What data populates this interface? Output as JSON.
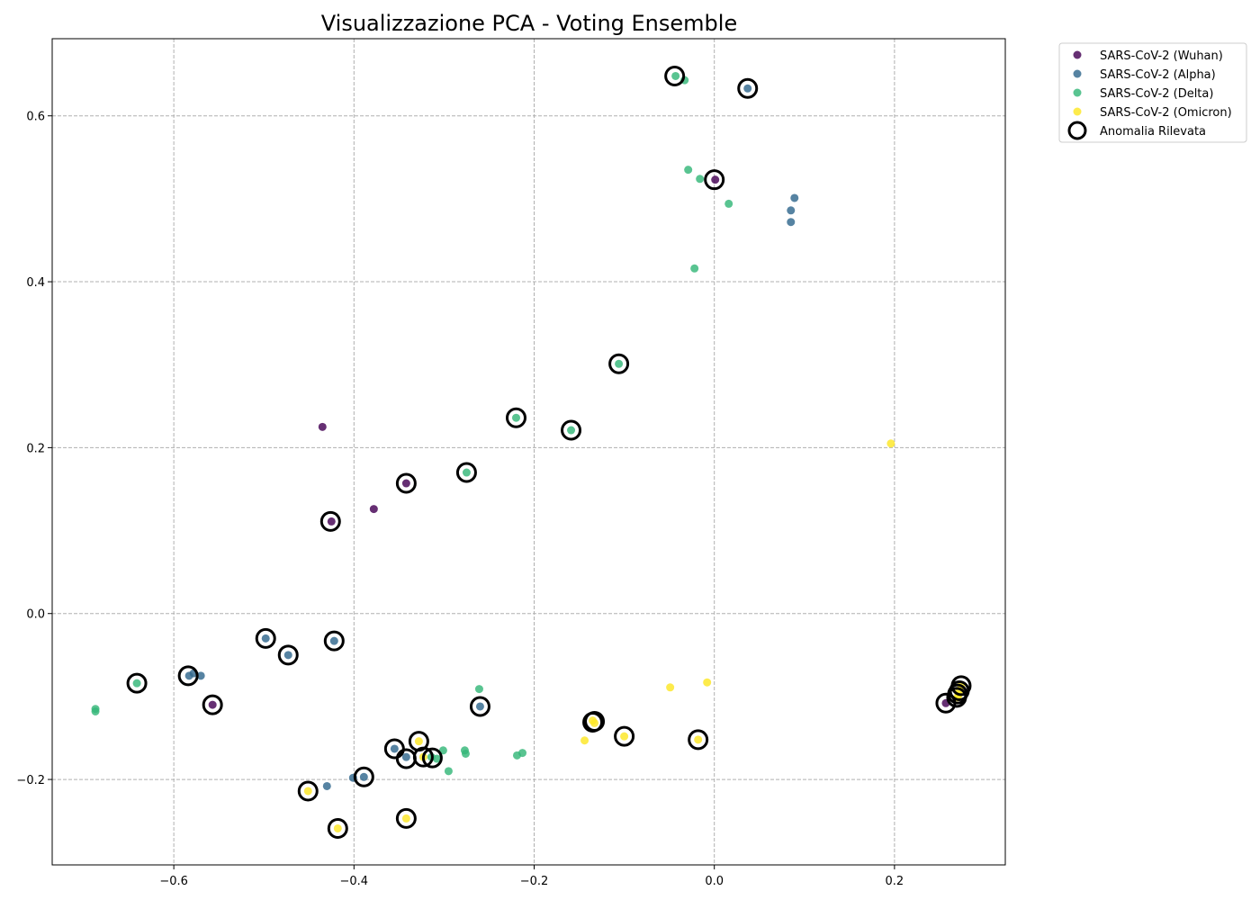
{
  "chart_data": {
    "type": "scatter",
    "title": "Visualizzazione PCA - Voting Ensemble",
    "xlabel": "",
    "ylabel": "",
    "xlim": [
      -0.735,
      0.323
    ],
    "ylim": [
      -0.303,
      0.693
    ],
    "xticks": [
      -0.6,
      -0.4,
      -0.2,
      0.0,
      0.2
    ],
    "xtick_labels": [
      "−0.6",
      "−0.4",
      "−0.2",
      "0.0",
      "0.2"
    ],
    "yticks": [
      -0.2,
      0.0,
      0.2,
      0.4,
      0.6
    ],
    "ytick_labels": [
      "−0.2",
      "0.0",
      "0.2",
      "0.4",
      "0.6"
    ],
    "grid": true,
    "legend_position": "outside-top-right",
    "series": [
      {
        "name": "SARS-CoV-2 (Wuhan)",
        "color": "#440154",
        "points": [
          [
            0.001,
            0.523
          ],
          [
            -0.435,
            0.225
          ],
          [
            -0.378,
            0.126
          ],
          [
            -0.342,
            0.157
          ],
          [
            -0.425,
            0.111
          ],
          [
            -0.557,
            -0.11
          ],
          [
            0.257,
            -0.108
          ]
        ]
      },
      {
        "name": "SARS-CoV-2 (Alpha)",
        "color": "#31688e",
        "points": [
          [
            0.037,
            0.633
          ],
          [
            0.089,
            0.501
          ],
          [
            0.085,
            0.486
          ],
          [
            0.085,
            0.472
          ],
          [
            -0.498,
            -0.03
          ],
          [
            -0.473,
            -0.05
          ],
          [
            -0.422,
            -0.033
          ],
          [
            -0.583,
            -0.075
          ],
          [
            -0.578,
            -0.072
          ],
          [
            -0.57,
            -0.075
          ],
          [
            -0.26,
            -0.112
          ],
          [
            -0.355,
            -0.163
          ],
          [
            -0.342,
            -0.173
          ],
          [
            -0.401,
            -0.198
          ],
          [
            -0.389,
            -0.197
          ],
          [
            -0.43,
            -0.208
          ]
        ]
      },
      {
        "name": "SARS-CoV-2 (Delta)",
        "color": "#35b779",
        "points": [
          [
            -0.043,
            0.648
          ],
          [
            -0.033,
            0.643
          ],
          [
            -0.029,
            0.535
          ],
          [
            -0.016,
            0.524
          ],
          [
            0.016,
            0.494
          ],
          [
            -0.022,
            0.416
          ],
          [
            -0.106,
            0.301
          ],
          [
            -0.22,
            0.236
          ],
          [
            -0.159,
            0.221
          ],
          [
            -0.275,
            0.17
          ],
          [
            -0.641,
            -0.084
          ],
          [
            -0.687,
            -0.115
          ],
          [
            -0.687,
            -0.118
          ],
          [
            -0.261,
            -0.091
          ],
          [
            -0.314,
            -0.173
          ],
          [
            -0.301,
            -0.165
          ],
          [
            -0.277,
            -0.165
          ],
          [
            -0.276,
            -0.169
          ],
          [
            -0.295,
            -0.19
          ],
          [
            -0.219,
            -0.171
          ],
          [
            -0.213,
            -0.168
          ],
          [
            -0.308,
            -0.175
          ]
        ]
      },
      {
        "name": "SARS-CoV-2 (Omicron)",
        "color": "#fde725",
        "points": [
          [
            0.196,
            0.205
          ],
          [
            -0.049,
            -0.089
          ],
          [
            -0.008,
            -0.083
          ],
          [
            -0.135,
            -0.129
          ],
          [
            -0.133,
            -0.132
          ],
          [
            -0.144,
            -0.153
          ],
          [
            -0.1,
            -0.148
          ],
          [
            -0.018,
            -0.152
          ],
          [
            -0.328,
            -0.154
          ],
          [
            -0.323,
            -0.173
          ],
          [
            -0.451,
            -0.214
          ],
          [
            -0.418,
            -0.259
          ],
          [
            -0.342,
            -0.247
          ],
          [
            0.274,
            -0.087
          ],
          [
            0.272,
            -0.093
          ],
          [
            0.271,
            -0.098
          ],
          [
            0.27,
            -0.101
          ]
        ]
      }
    ],
    "anomalies": {
      "name": "Anomalia Rilevata",
      "points": [
        [
          -0.044,
          0.648
        ],
        [
          0.037,
          0.633
        ],
        [
          0.0,
          0.523
        ],
        [
          -0.106,
          0.301
        ],
        [
          -0.22,
          0.236
        ],
        [
          -0.159,
          0.221
        ],
        [
          -0.275,
          0.17
        ],
        [
          -0.342,
          0.157
        ],
        [
          -0.426,
          0.111
        ],
        [
          -0.498,
          -0.03
        ],
        [
          -0.473,
          -0.05
        ],
        [
          -0.422,
          -0.033
        ],
        [
          -0.641,
          -0.084
        ],
        [
          -0.584,
          -0.075
        ],
        [
          -0.557,
          -0.11
        ],
        [
          -0.26,
          -0.112
        ],
        [
          -0.135,
          -0.131
        ],
        [
          -0.133,
          -0.13
        ],
        [
          -0.1,
          -0.148
        ],
        [
          -0.018,
          -0.152
        ],
        [
          -0.355,
          -0.163
        ],
        [
          -0.328,
          -0.154
        ],
        [
          -0.342,
          -0.175
        ],
        [
          -0.323,
          -0.173
        ],
        [
          -0.313,
          -0.174
        ],
        [
          -0.389,
          -0.197
        ],
        [
          -0.451,
          -0.214
        ],
        [
          -0.418,
          -0.259
        ],
        [
          -0.342,
          -0.247
        ],
        [
          0.257,
          -0.108
        ],
        [
          0.274,
          -0.087
        ],
        [
          0.272,
          -0.093
        ],
        [
          0.27,
          -0.097
        ],
        [
          0.269,
          -0.101
        ]
      ]
    }
  }
}
